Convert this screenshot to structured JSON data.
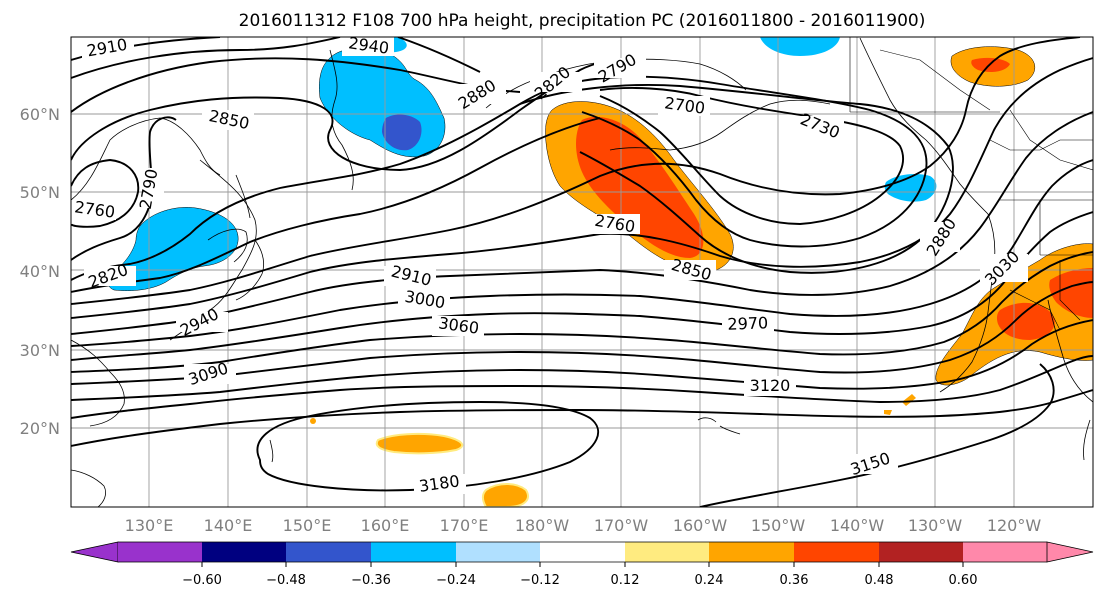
{
  "title": "2016011312 F108 700 hPa height, precipitation PC (2016011800 - 2016011900)",
  "lat_labels": [
    "60°N",
    "50°N",
    "40°N",
    "30°N",
    "20°N"
  ],
  "lon_labels": [
    "130°E",
    "140°E",
    "150°E",
    "160°E",
    "170°E",
    "180°W",
    "170°W",
    "160°W",
    "150°W",
    "140°W",
    "130°W",
    "120°W"
  ],
  "contour_labels": [
    "2910",
    "2940",
    "2850",
    "2880",
    "2820",
    "2790",
    "2700",
    "2730",
    "2760",
    "2790",
    "2760",
    "2820",
    "2940",
    "2910",
    "3000",
    "3060",
    "2850",
    "2970",
    "2880",
    "3030",
    "3090",
    "3120",
    "3180",
    "3150"
  ],
  "colorbar": {
    "ticks": [
      "−0.60",
      "−0.48",
      "−0.36",
      "−0.24",
      "−0.12",
      "0.12",
      "0.24",
      "0.36",
      "0.48",
      "0.60"
    ],
    "colors": [
      "#9932cc",
      "#000080",
      "#3355cc",
      "#00bfff",
      "#b0e0ff",
      "#ffffff",
      "#ffeb80",
      "#ffa500",
      "#ff4500",
      "#b22222",
      "#ff88aa"
    ]
  },
  "colors": {
    "neg_light": "#00bfff",
    "neg_mid": "#3355cc",
    "pos_light": "#ffa500",
    "pos_mid": "#ff4500",
    "pos_pale": "#ffeb80"
  }
}
